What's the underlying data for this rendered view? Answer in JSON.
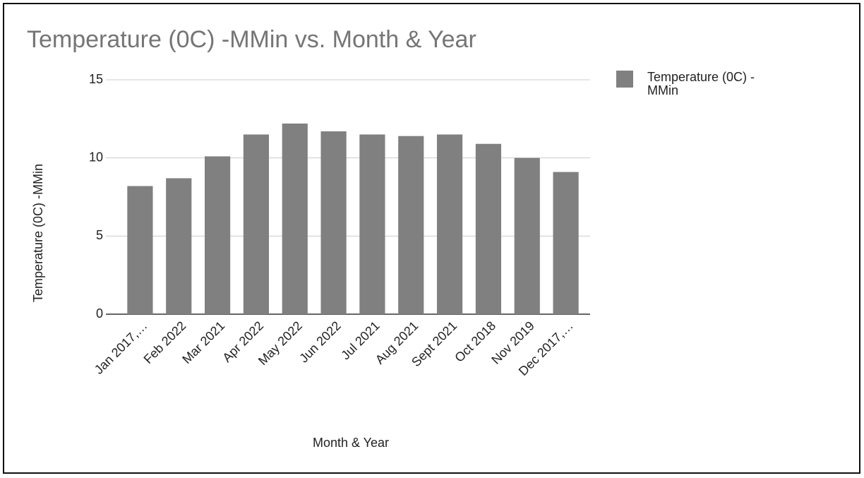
{
  "chart_data": {
    "type": "bar",
    "title": "Temperature (0C) -MMin vs. Month & Year",
    "x_label": "Month & Year",
    "y_label": "Temperature (0C) -MMin",
    "categories": [
      "Jan 2017,…",
      "Feb 2022",
      "Mar 2021",
      "Apr 2022",
      "May 2022",
      "Jun 2022",
      "Jul 2021",
      "Aug 2021",
      "Sept 2021",
      "Oct 2018",
      "Nov 2019",
      "Dec 2017,…"
    ],
    "series": [
      {
        "name": "Temperature (0C) -MMin",
        "color": "#808080",
        "values": [
          8.2,
          8.7,
          10.1,
          11.5,
          12.2,
          11.7,
          11.5,
          11.4,
          11.5,
          10.9,
          10.0,
          9.1
        ]
      }
    ],
    "ylim": [
      0,
      15
    ],
    "yticks": [
      0,
      5,
      10,
      15
    ],
    "grid": true,
    "legend": "right"
  }
}
